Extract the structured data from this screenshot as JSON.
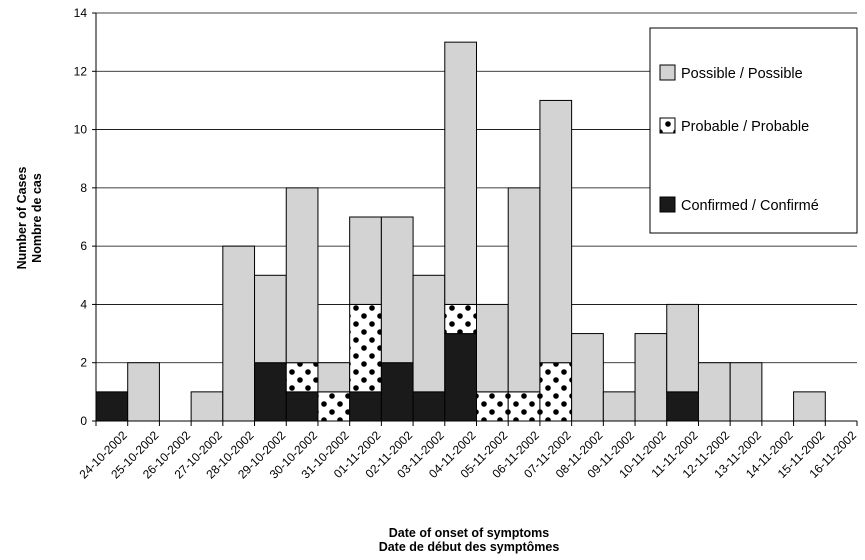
{
  "chart_data": {
    "type": "bar",
    "stacked": true,
    "categories": [
      "24-10-2002",
      "25-10-2002",
      "26-10-2002",
      "27-10-2002",
      "28-10-2002",
      "29-10-2002",
      "30-10-2002",
      "31-10-2002",
      "01-11-2002",
      "02-11-2002",
      "03-11-2002",
      "04-11-2002",
      "05-11-2002",
      "06-11-2002",
      "07-11-2002",
      "08-11-2002",
      "09-11-2002",
      "10-11-2002",
      "11-11-2002",
      "12-11-2002",
      "13-11-2002",
      "14-11-2002",
      "15-11-2002",
      "16-11-2002"
    ],
    "series": [
      {
        "name": "Confirmed / Confirmé",
        "key": "confirmed",
        "color": "#1a1a1a",
        "values": [
          1,
          0,
          0,
          0,
          0,
          2,
          1,
          0,
          1,
          2,
          1,
          3,
          0,
          0,
          0,
          0,
          0,
          0,
          1,
          0,
          0,
          0,
          0,
          0
        ]
      },
      {
        "name": "Probable / Probable",
        "key": "probable",
        "color": "#ffffff",
        "values": [
          0,
          0,
          0,
          0,
          0,
          0,
          1,
          1,
          3,
          0,
          0,
          1,
          1,
          1,
          2,
          0,
          0,
          0,
          0,
          0,
          0,
          0,
          0,
          0
        ]
      },
      {
        "name": "Possible / Possible",
        "key": "possible",
        "color": "#d3d3d3",
        "values": [
          0,
          2,
          0,
          1,
          6,
          3,
          6,
          1,
          3,
          5,
          4,
          9,
          3,
          7,
          9,
          3,
          1,
          3,
          3,
          2,
          2,
          0,
          1,
          0
        ]
      }
    ],
    "xlabel": [
      "Date of onset of symptoms",
      "Date de début des symptômes"
    ],
    "ylabel": [
      "Number of Cases",
      "Nombre de cas"
    ],
    "ylim": [
      0,
      14
    ],
    "yticks": [
      0,
      2,
      4,
      6,
      8,
      10,
      12,
      14
    ],
    "grid": true,
    "legend_position": "top-right",
    "legend_order": [
      "possible",
      "probable",
      "confirmed"
    ]
  }
}
